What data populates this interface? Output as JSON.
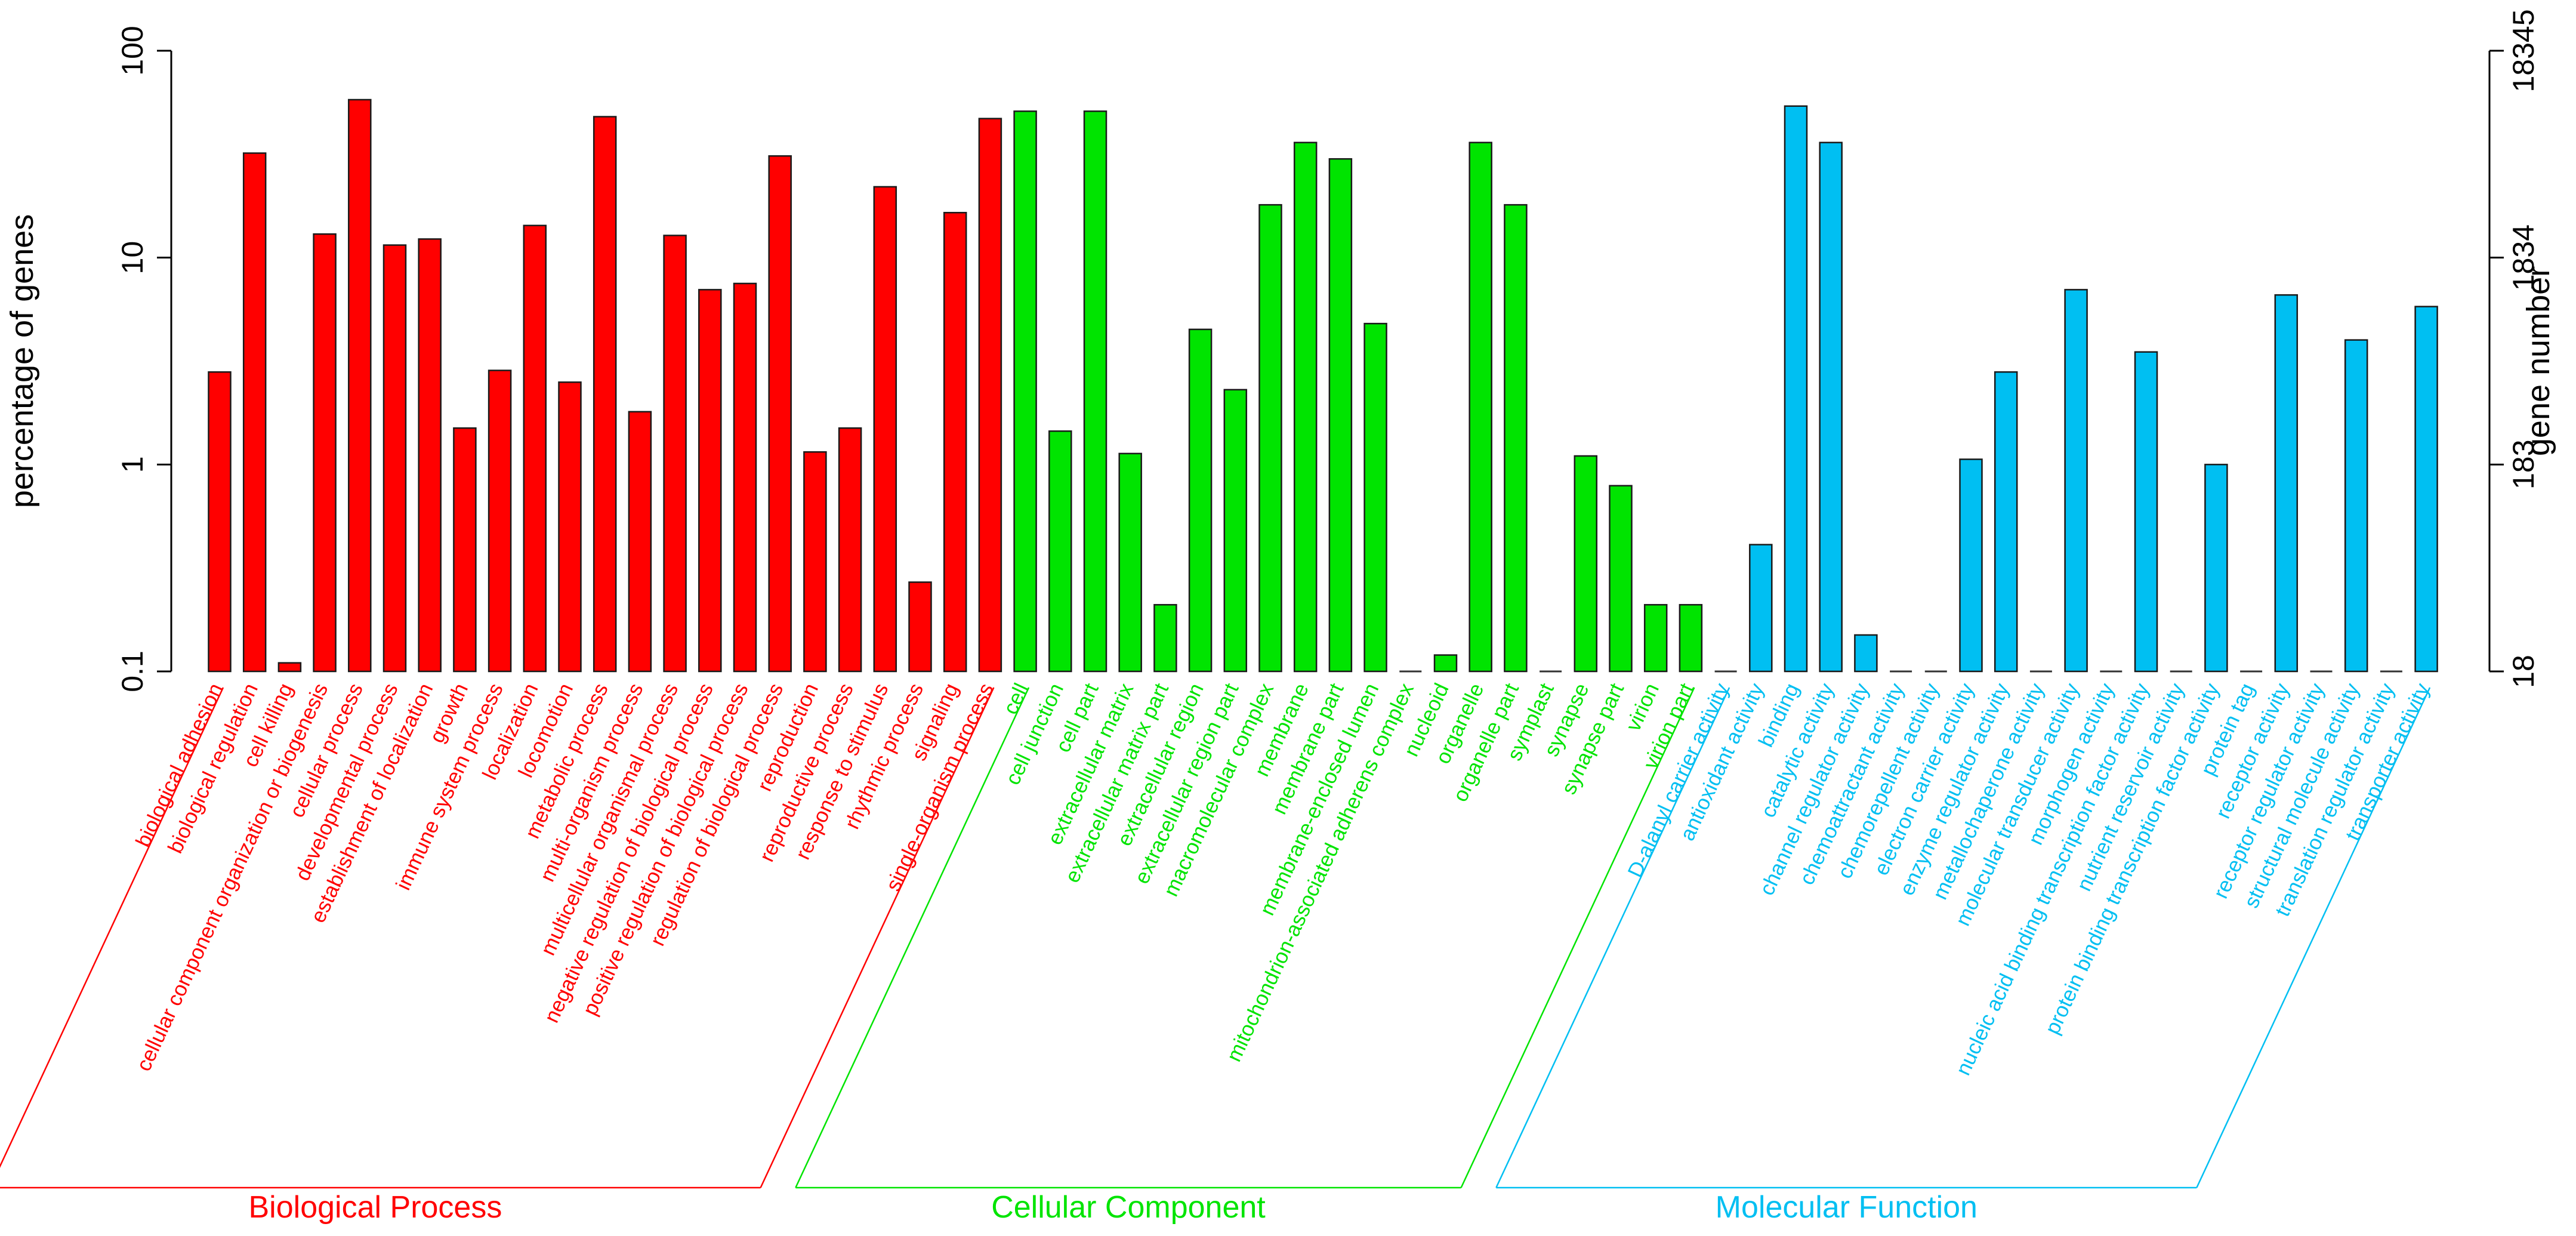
{
  "chart_data": {
    "type": "bar",
    "y_scale": "log",
    "ylabel": "percentage of genes",
    "ylabel_right": "gene number",
    "ylim": [
      0.1,
      100
    ],
    "left_ticks": [
      "0.1",
      "1",
      "10",
      "100"
    ],
    "right_ticks": [
      "18",
      "183",
      "1834",
      "18345"
    ],
    "colors": {
      "biological_process": "#ff0000",
      "cellular_component": "#00e400",
      "molecular_function": "#00bff2"
    },
    "groups": [
      {
        "key": "biological_process",
        "name": "Biological Process",
        "color": "#ff0000",
        "categories": [
          "biological adhesion",
          "biological regulation",
          "cell killing",
          "cellular component organization or biogenesis",
          "cellular process",
          "developmental process",
          "establishment of localization",
          "growth",
          "immune system process",
          "localization",
          "locomotion",
          "metabolic process",
          "multi-organism process",
          "multicellular organismal process",
          "negative regulation of biological process",
          "positive regulation of biological process",
          "regulation of biological process",
          "reproduction",
          "reproductive process",
          "response to stimulus",
          "rhythmic process",
          "signaling",
          "single-organism process"
        ],
        "values": [
          2.8,
          32,
          0.11,
          13,
          58,
          11.5,
          12.3,
          1.5,
          2.85,
          14.3,
          2.5,
          48,
          1.8,
          12.8,
          7,
          7.5,
          31,
          1.15,
          1.5,
          22,
          0.27,
          16.5,
          47
        ]
      },
      {
        "key": "cellular_component",
        "name": "Cellular Component",
        "color": "#00e400",
        "categories": [
          "cell",
          "cell junction",
          "cell part",
          "extracellular matrix",
          "extracellular matrix part",
          "extracellular region",
          "extracellular region part",
          "macromolecular complex",
          "membrane",
          "membrane part",
          "membrane-enclosed lumen",
          "mitochondrion-associated adherens complex",
          "nucleoid",
          "organelle",
          "organelle part",
          "symplast",
          "synapse",
          "synapse part",
          "virion",
          "virion part"
        ],
        "values": [
          51,
          1.45,
          51,
          1.13,
          0.21,
          4.5,
          2.3,
          18,
          36,
          30,
          4.8,
          0.1,
          0.12,
          36,
          18,
          0.1,
          1.1,
          0.79,
          0.21,
          0.21
        ]
      },
      {
        "key": "molecular_function",
        "name": "Molecular Function",
        "color": "#00bff2",
        "categories": [
          "D-alanyl carrier activity",
          "antioxidant activity",
          "binding",
          "catalytic activity",
          "channel regulator activity",
          "chemoattractant activity",
          "chemorepellent activity",
          "electron carrier activity",
          "enzyme regulator activity",
          "metallochaperone activity",
          "molecular transducer activity",
          "morphogen activity",
          "nucleic acid binding transcription factor activity",
          "nutrient reservoir activity",
          "protein binding transcription factor activity",
          "protein tag",
          "receptor activity",
          "receptor regulator activity",
          "structural molecule activity",
          "translation regulator activity",
          "transporter activity"
        ],
        "values": [
          0.1,
          0.41,
          54,
          36,
          0.15,
          0.1,
          0.1,
          1.06,
          2.8,
          0.1,
          7,
          0.1,
          3.5,
          0.1,
          1,
          0.1,
          6.6,
          0.1,
          4,
          0.1,
          5.8
        ]
      }
    ]
  }
}
